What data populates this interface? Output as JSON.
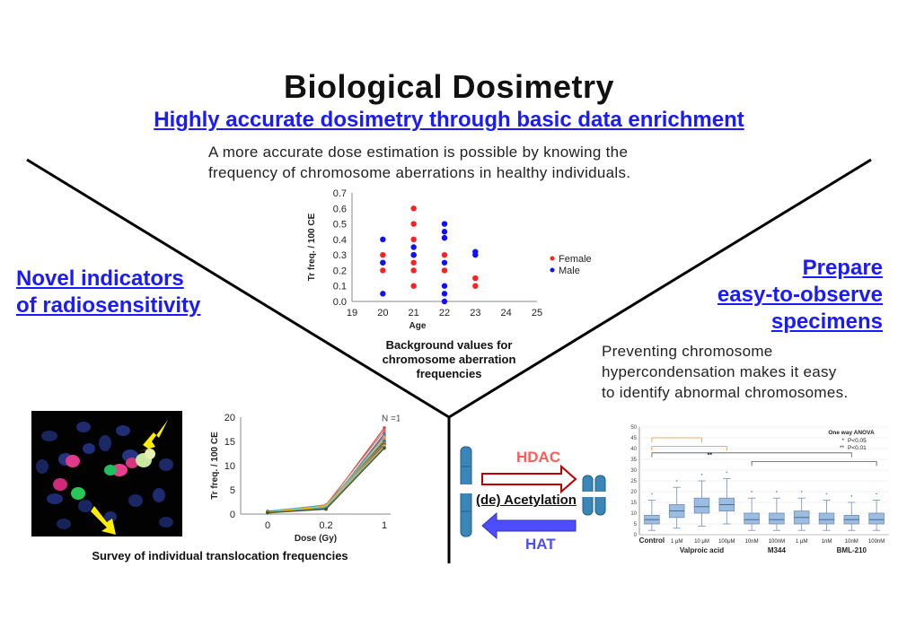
{
  "title": "Biological Dosimetry",
  "subtitle": "Highly accurate dosimetry through basic data enrichment",
  "description": [
    "A more accurate dose estimation is possible by knowing the",
    "frequency of chromosome aberrations in healthy individuals."
  ],
  "left_heading": [
    "Novel indicators",
    "of radiosensitivity"
  ],
  "right_heading": [
    "Prepare",
    "easy-to-observe",
    "specimens"
  ],
  "right_description": [
    "Preventing chromosome",
    "hypercondensation makes it easy",
    "to identify abnormal chromosomes."
  ],
  "colors": {
    "link": "#1a1aff",
    "female": "#ff2020",
    "male": "#1010ff",
    "hdac": "#ff5a5a",
    "hat": "#4d4dff"
  },
  "chart_data": [
    {
      "type": "scatter",
      "xlabel": "Age",
      "ylabel": "Tr freq. / 100 CE",
      "xlim": [
        19,
        25
      ],
      "ylim": [
        0,
        0.7
      ],
      "xticks": [
        "19",
        "20",
        "21",
        "22",
        "23",
        "24",
        "25"
      ],
      "yticks": [
        "0.0",
        "0.1",
        "0.2",
        "0.3",
        "0.4",
        "0.5",
        "0.6",
        "0.7"
      ],
      "legend": [
        "Female",
        "Male"
      ],
      "series": [
        {
          "name": "Female",
          "points": [
            [
              20,
              0.3
            ],
            [
              20,
              0.25
            ],
            [
              20,
              0.2
            ],
            [
              21,
              0.6
            ],
            [
              21,
              0.5
            ],
            [
              21,
              0.4
            ],
            [
              21,
              0.3
            ],
            [
              21,
              0.25
            ],
            [
              21,
              0.2
            ],
            [
              21,
              0.1
            ],
            [
              22,
              0.41
            ],
            [
              22,
              0.3
            ],
            [
              22,
              0.2
            ],
            [
              23,
              0.15
            ],
            [
              23,
              0.1
            ]
          ]
        },
        {
          "name": "Male",
          "points": [
            [
              20,
              0.4
            ],
            [
              20,
              0.25
            ],
            [
              20,
              0.05
            ],
            [
              21,
              0.35
            ],
            [
              21,
              0.3
            ],
            [
              21,
              0.3
            ],
            [
              22,
              0.5
            ],
            [
              22,
              0.45
            ],
            [
              22,
              0.41
            ],
            [
              22,
              0.25
            ],
            [
              22,
              0.1
            ],
            [
              22,
              0.05
            ],
            [
              22,
              0.0
            ],
            [
              23,
              0.32
            ],
            [
              23,
              0.3
            ]
          ]
        }
      ],
      "caption": [
        "Background values for",
        "chromosome aberration",
        "frequencies"
      ]
    },
    {
      "type": "line",
      "xlabel": "Dose (Gy)",
      "ylabel": "Tr freq. / 100 CE",
      "ylim": [
        0,
        20
      ],
      "categories": [
        "0",
        "0.2",
        "1"
      ],
      "yticks": [
        "0",
        "5",
        "10",
        "15",
        "20"
      ],
      "annotation": "N =15",
      "lines": [
        [
          0.3,
          1.6,
          17.8
        ],
        [
          0.5,
          1.9,
          17.2
        ],
        [
          0.2,
          1.2,
          16.6
        ],
        [
          0.4,
          1.4,
          16.2
        ],
        [
          0.3,
          1.5,
          15.9
        ],
        [
          0.2,
          1.0,
          15.5
        ],
        [
          0.6,
          1.8,
          15.2
        ],
        [
          0.3,
          1.3,
          15.0
        ],
        [
          0.4,
          1.1,
          14.8
        ],
        [
          0.2,
          1.7,
          14.6
        ],
        [
          0.5,
          1.2,
          14.4
        ],
        [
          0.3,
          1.4,
          14.2
        ],
        [
          0.4,
          1.6,
          14.0
        ],
        [
          0.2,
          1.3,
          13.8
        ],
        [
          0.3,
          1.0,
          13.6
        ]
      ],
      "line_colors": [
        "#c0504d",
        "#e07060",
        "#8064a2",
        "#4f81bd",
        "#9bbb59",
        "#f79646",
        "#4bacc6",
        "#7f6000",
        "#2f5597",
        "#a9a9a9",
        "#c00000",
        "#70ad47",
        "#ffc000",
        "#5b9bd5",
        "#385723"
      ],
      "caption": "Survey of individual translocation frequencies"
    },
    {
      "type": "box",
      "categories": [
        "Control",
        "1 μM",
        "10 μM",
        "100μM",
        "10nM",
        "100nM",
        "1 μM",
        "1nM",
        "10nM",
        "100nM"
      ],
      "groups": [
        "Valproic acid",
        "M344",
        "BML-210"
      ],
      "ylim": [
        0,
        50
      ],
      "yticks": [
        "0",
        "5",
        "10",
        "15",
        "20",
        "25",
        "30",
        "35",
        "40",
        "45",
        "50"
      ],
      "medians": [
        7,
        11,
        13,
        14,
        7,
        7,
        8,
        7,
        7,
        7
      ],
      "q1": [
        5,
        8,
        10,
        11,
        5,
        5,
        5,
        5,
        5,
        5
      ],
      "q3": [
        9,
        14,
        17,
        17,
        10,
        10,
        11,
        10,
        9,
        10
      ],
      "whisker_low": [
        2,
        3,
        4,
        5,
        2,
        2,
        2,
        2,
        2,
        2
      ],
      "whisker_high": [
        16,
        22,
        25,
        26,
        17,
        17,
        17,
        16,
        15,
        16
      ],
      "legend_title": "One way ANOVA",
      "legend": [
        "P<0.05",
        "P<0.01"
      ],
      "significance": "**"
    }
  ],
  "diagram": {
    "hdac_label": "HDAC",
    "hat_label": "HAT",
    "center_label": "(de) Acetylation"
  },
  "photo": {
    "description_icon": "chromosome-fish-image"
  }
}
